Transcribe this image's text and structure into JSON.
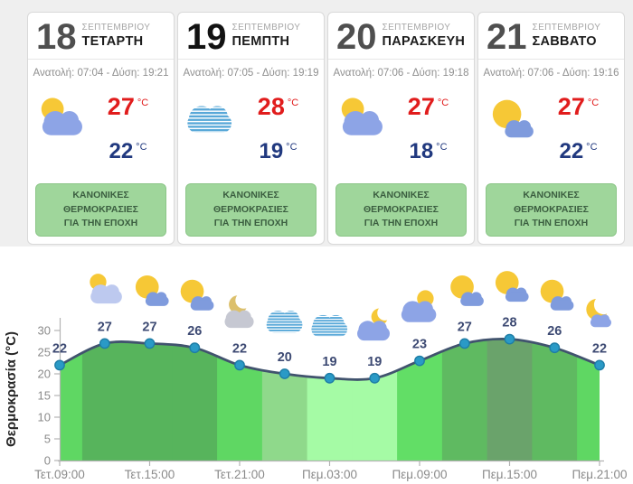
{
  "theme": {
    "bg_top": "#efefef",
    "card_border": "#d9d9d9",
    "high_temp_color": "#e11c1c",
    "low_temp_color": "#21397f",
    "badge_bg": "#9fd69b",
    "badge_text_color": "#3b5e40",
    "sun_yellow": "#f6c836",
    "cloud_blue": "#8da4e6",
    "cloud_small_blue": "#7f9bdd",
    "cloud_pale": "#bdc9ef",
    "cloud_gray": "#c6c8d2",
    "stripe_blue": "#58a8d8",
    "moon_dull": "#dcc06c"
  },
  "cards": [
    {
      "day_number": "18",
      "month": "ΣΕΠΤΕΜΒΡΙΟΥ",
      "day_name": "ΤΕΤΑΡΤΗ",
      "sun_info": "Ανατολή: 07:04 - Δύση: 19:21",
      "icon": "sun_cloud",
      "high_temp": "27",
      "low_temp": "22",
      "temp_unit": "°C",
      "badge_line1": "ΚΑΝΟΝΙΚΕΣ ΘΕΡΜΟΚΡΑΣΙΕΣ",
      "badge_line2": "ΓΙΑ ΤΗΝ ΕΠΟΧΗ",
      "today": false
    },
    {
      "day_number": "19",
      "month": "ΣΕΠΤΕΜΒΡΙΟΥ",
      "day_name": "ΠΕΜΠΤΗ",
      "sun_info": "Ανατολή: 07:05 - Δύση: 19:19",
      "icon": "overcast",
      "high_temp": "28",
      "low_temp": "19",
      "temp_unit": "°C",
      "badge_line1": "ΚΑΝΟΝΙΚΕΣ ΘΕΡΜΟΚΡΑΣΙΕΣ",
      "badge_line2": "ΓΙΑ ΤΗΝ ΕΠΟΧΗ",
      "today": true
    },
    {
      "day_number": "20",
      "month": "ΣΕΠΤΕΜΒΡΙΟΥ",
      "day_name": "ΠΑΡΑΣΚΕΥΗ",
      "sun_info": "Ανατολή: 07:06 - Δύση: 19:18",
      "icon": "sun_cloud",
      "high_temp": "27",
      "low_temp": "18",
      "temp_unit": "°C",
      "badge_line1": "ΚΑΝΟΝΙΚΕΣ ΘΕΡΜΟΚΡΑΣΙΕΣ",
      "badge_line2": "ΓΙΑ ΤΗΝ ΕΠΟΧΗ",
      "today": false
    },
    {
      "day_number": "21",
      "month": "ΣΕΠΤΕΜΒΡΙΟΥ",
      "day_name": "ΣΑΒΒΑΤΟ",
      "sun_info": "Ανατολή: 07:06 - Δύση: 19:16",
      "icon": "sun_small_cloud",
      "high_temp": "27",
      "low_temp": "22",
      "temp_unit": "°C",
      "badge_line1": "ΚΑΝΟΝΙΚΕΣ ΘΕΡΜΟΚΡΑΣΙΕΣ",
      "badge_line2": "ΓΙΑ ΤΗΝ ΕΠΟΧΗ",
      "today": false
    }
  ],
  "chart_data": {
    "type": "area",
    "ylabel": "Θερμοκρασία (°C)",
    "ylim": [
      0,
      30
    ],
    "yticks": [
      "0",
      "5",
      "10",
      "15",
      "20",
      "25",
      "30"
    ],
    "x_tick_labels": [
      "Τετ.09:00",
      "Τετ.15:00",
      "Τετ.21:00",
      "Πεμ.03:00",
      "Πεμ.09:00",
      "Πεμ.15:00",
      "Πεμ.21:00"
    ],
    "x_tick_point_indexes": [
      0,
      2,
      4,
      6,
      8,
      10,
      12
    ],
    "grid": false,
    "legend": "none",
    "points": [
      {
        "value": 22,
        "icon": null,
        "band_color": "#5fd763"
      },
      {
        "value": 27,
        "icon": "sun_pale_cloud",
        "band_color": "#57b45c"
      },
      {
        "value": 27,
        "icon": "sun_small_cloud",
        "band_color": "#57b45c"
      },
      {
        "value": 26,
        "icon": "sun_small_cloud",
        "band_color": "#57b45c"
      },
      {
        "value": 22,
        "icon": "moon_gray_cloud",
        "band_color": "#5fd763"
      },
      {
        "value": 20,
        "icon": "overcast",
        "band_color": "#8fd98b"
      },
      {
        "value": 19,
        "icon": "overcast",
        "band_color": "#a5fba5"
      },
      {
        "value": 19,
        "icon": "moon_cloud",
        "band_color": "#a5fba5"
      },
      {
        "value": 23,
        "icon": "cloud_sun",
        "band_color": "#62de66"
      },
      {
        "value": 27,
        "icon": "sun_small_cloud",
        "band_color": "#5fba61"
      },
      {
        "value": 28,
        "icon": "sun_small_cloud",
        "band_color": "#6aa36b"
      },
      {
        "value": 26,
        "icon": "sun_small_cloud",
        "band_color": "#5fba61"
      },
      {
        "value": 22,
        "icon": "moon_small_cloud",
        "band_color": "#5fd763"
      }
    ],
    "line_color": "#41536e",
    "dot_fill": "#2a9ac6",
    "dot_stroke": "#1e7da6",
    "point_label_color": "#3d4a73",
    "axis_color": "#b3b3b3",
    "tick_label_color": "#8a8a8a",
    "ylabel_color": "#262626"
  }
}
